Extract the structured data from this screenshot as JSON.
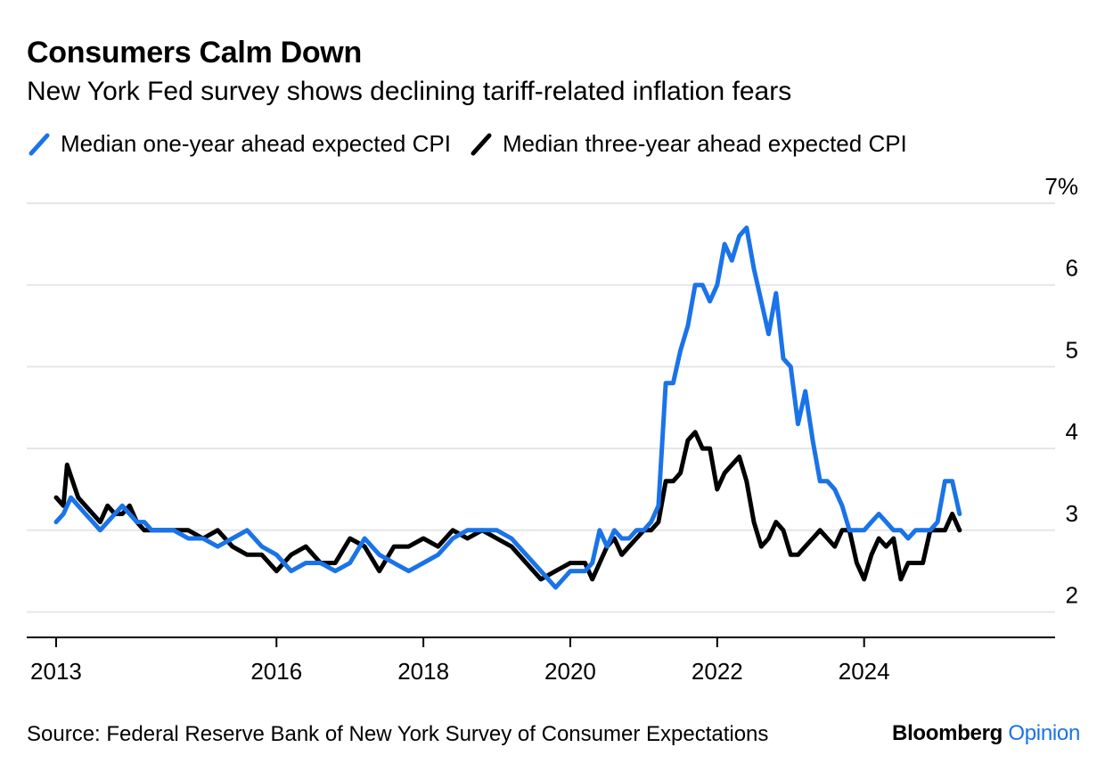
{
  "title": "Consumers Calm Down",
  "subtitle": "New York Fed survey shows declining tariff-related inflation fears",
  "source": "Source: Federal Reserve Bank of New York Survey of Consumer Expectations",
  "brand": {
    "name": "Bloomberg",
    "suffix": "Opinion"
  },
  "colors": {
    "series1": "#1a73e8",
    "series2": "#000000",
    "grid": "#e6e6e6",
    "axis": "#000000"
  },
  "chart_data": {
    "type": "line",
    "title": "Consumers Calm Down",
    "subtitle": "New York Fed survey shows declining tariff-related inflation fears",
    "xlabel": "",
    "ylabel": "",
    "xlim": [
      2012.6,
      2026.6
    ],
    "ylim": [
      1.7,
      7.0
    ],
    "grid": true,
    "legend": "top-left",
    "y_ticks": [
      {
        "value": 2,
        "label": "2"
      },
      {
        "value": 3,
        "label": "3"
      },
      {
        "value": 4,
        "label": "4"
      },
      {
        "value": 5,
        "label": "5"
      },
      {
        "value": 6,
        "label": "6"
      },
      {
        "value": 7,
        "label": "7%"
      }
    ],
    "x_ticks": [
      {
        "value": 2013,
        "label": "2013"
      },
      {
        "value": 2016,
        "label": "2016"
      },
      {
        "value": 2018,
        "label": "2018"
      },
      {
        "value": 2020,
        "label": "2020"
      },
      {
        "value": 2022,
        "label": "2022"
      },
      {
        "value": 2024,
        "label": "2024"
      }
    ],
    "series": [
      {
        "name": "Median one-year ahead expected CPI",
        "x": [
          2013.0,
          2013.1,
          2013.2,
          2013.3,
          2013.4,
          2013.5,
          2013.6,
          2013.7,
          2013.8,
          2013.9,
          2014.0,
          2014.1,
          2014.2,
          2014.3,
          2014.4,
          2014.5,
          2014.6,
          2014.8,
          2015.0,
          2015.2,
          2015.4,
          2015.6,
          2015.8,
          2016.0,
          2016.2,
          2016.4,
          2016.6,
          2016.8,
          2017.0,
          2017.2,
          2017.4,
          2017.6,
          2017.8,
          2018.0,
          2018.2,
          2018.4,
          2018.6,
          2018.8,
          2019.0,
          2019.2,
          2019.4,
          2019.6,
          2019.8,
          2020.0,
          2020.2,
          2020.3,
          2020.4,
          2020.5,
          2020.6,
          2020.7,
          2020.8,
          2020.9,
          2021.0,
          2021.1,
          2021.2,
          2021.3,
          2021.4,
          2021.5,
          2021.6,
          2021.7,
          2021.8,
          2021.9,
          2022.0,
          2022.1,
          2022.2,
          2022.3,
          2022.4,
          2022.5,
          2022.6,
          2022.7,
          2022.8,
          2022.9,
          2023.0,
          2023.1,
          2023.2,
          2023.3,
          2023.4,
          2023.5,
          2023.6,
          2023.7,
          2023.8,
          2023.9,
          2024.0,
          2024.1,
          2024.2,
          2024.3,
          2024.4,
          2024.5,
          2024.6,
          2024.7,
          2024.8,
          2024.9,
          2025.0,
          2025.1,
          2025.2,
          2025.3
        ],
        "values": [
          3.1,
          3.2,
          3.4,
          3.3,
          3.2,
          3.1,
          3.0,
          3.1,
          3.2,
          3.3,
          3.2,
          3.1,
          3.1,
          3.0,
          3.0,
          3.0,
          3.0,
          2.9,
          2.9,
          2.8,
          2.9,
          3.0,
          2.8,
          2.7,
          2.5,
          2.6,
          2.6,
          2.5,
          2.6,
          2.9,
          2.7,
          2.6,
          2.5,
          2.6,
          2.7,
          2.9,
          3.0,
          3.0,
          3.0,
          2.9,
          2.7,
          2.5,
          2.3,
          2.5,
          2.5,
          2.6,
          3.0,
          2.8,
          3.0,
          2.9,
          2.9,
          3.0,
          3.0,
          3.1,
          3.3,
          4.8,
          4.8,
          5.2,
          5.5,
          6.0,
          6.0,
          5.8,
          6.0,
          6.5,
          6.3,
          6.6,
          6.7,
          6.2,
          5.8,
          5.4,
          5.9,
          5.1,
          5.0,
          4.3,
          4.7,
          4.1,
          3.6,
          3.6,
          3.5,
          3.3,
          3.0,
          3.0,
          3.0,
          3.1,
          3.2,
          3.1,
          3.0,
          3.0,
          2.9,
          3.0,
          3.0,
          3.0,
          3.1,
          3.6,
          3.6,
          3.2
        ]
      },
      {
        "name": "Median three-year ahead expected CPI",
        "x": [
          2013.0,
          2013.1,
          2013.15,
          2013.3,
          2013.4,
          2013.5,
          2013.6,
          2013.7,
          2013.8,
          2013.9,
          2014.0,
          2014.1,
          2014.2,
          2014.3,
          2014.4,
          2014.5,
          2014.6,
          2014.8,
          2015.0,
          2015.2,
          2015.4,
          2015.6,
          2015.8,
          2016.0,
          2016.2,
          2016.4,
          2016.6,
          2016.8,
          2017.0,
          2017.2,
          2017.4,
          2017.6,
          2017.8,
          2018.0,
          2018.2,
          2018.4,
          2018.6,
          2018.8,
          2019.0,
          2019.2,
          2019.4,
          2019.6,
          2019.8,
          2020.0,
          2020.2,
          2020.3,
          2020.4,
          2020.5,
          2020.6,
          2020.7,
          2020.8,
          2020.9,
          2021.0,
          2021.1,
          2021.2,
          2021.3,
          2021.4,
          2021.5,
          2021.6,
          2021.7,
          2021.8,
          2021.9,
          2022.0,
          2022.1,
          2022.2,
          2022.3,
          2022.4,
          2022.5,
          2022.6,
          2022.7,
          2022.8,
          2022.9,
          2023.0,
          2023.1,
          2023.2,
          2023.3,
          2023.4,
          2023.5,
          2023.6,
          2023.7,
          2023.8,
          2023.9,
          2024.0,
          2024.1,
          2024.2,
          2024.3,
          2024.4,
          2024.5,
          2024.6,
          2024.7,
          2024.8,
          2024.9,
          2025.0,
          2025.1,
          2025.2,
          2025.3
        ],
        "values": [
          3.4,
          3.3,
          3.8,
          3.4,
          3.3,
          3.2,
          3.1,
          3.3,
          3.2,
          3.2,
          3.3,
          3.1,
          3.0,
          3.0,
          3.0,
          3.0,
          3.0,
          3.0,
          2.9,
          3.0,
          2.8,
          2.7,
          2.7,
          2.5,
          2.7,
          2.8,
          2.6,
          2.6,
          2.9,
          2.8,
          2.5,
          2.8,
          2.8,
          2.9,
          2.8,
          3.0,
          2.9,
          3.0,
          2.9,
          2.8,
          2.6,
          2.4,
          2.5,
          2.6,
          2.6,
          2.4,
          2.6,
          2.8,
          2.9,
          2.7,
          2.8,
          2.9,
          3.0,
          3.0,
          3.1,
          3.6,
          3.6,
          3.7,
          4.1,
          4.2,
          4.0,
          4.0,
          3.5,
          3.7,
          3.8,
          3.9,
          3.6,
          3.1,
          2.8,
          2.9,
          3.1,
          3.0,
          2.7,
          2.7,
          2.8,
          2.9,
          3.0,
          2.9,
          2.8,
          3.0,
          3.0,
          2.6,
          2.4,
          2.7,
          2.9,
          2.8,
          2.9,
          2.4,
          2.6,
          2.6,
          2.6,
          3.0,
          3.0,
          3.0,
          3.2,
          3.0
        ]
      }
    ]
  }
}
